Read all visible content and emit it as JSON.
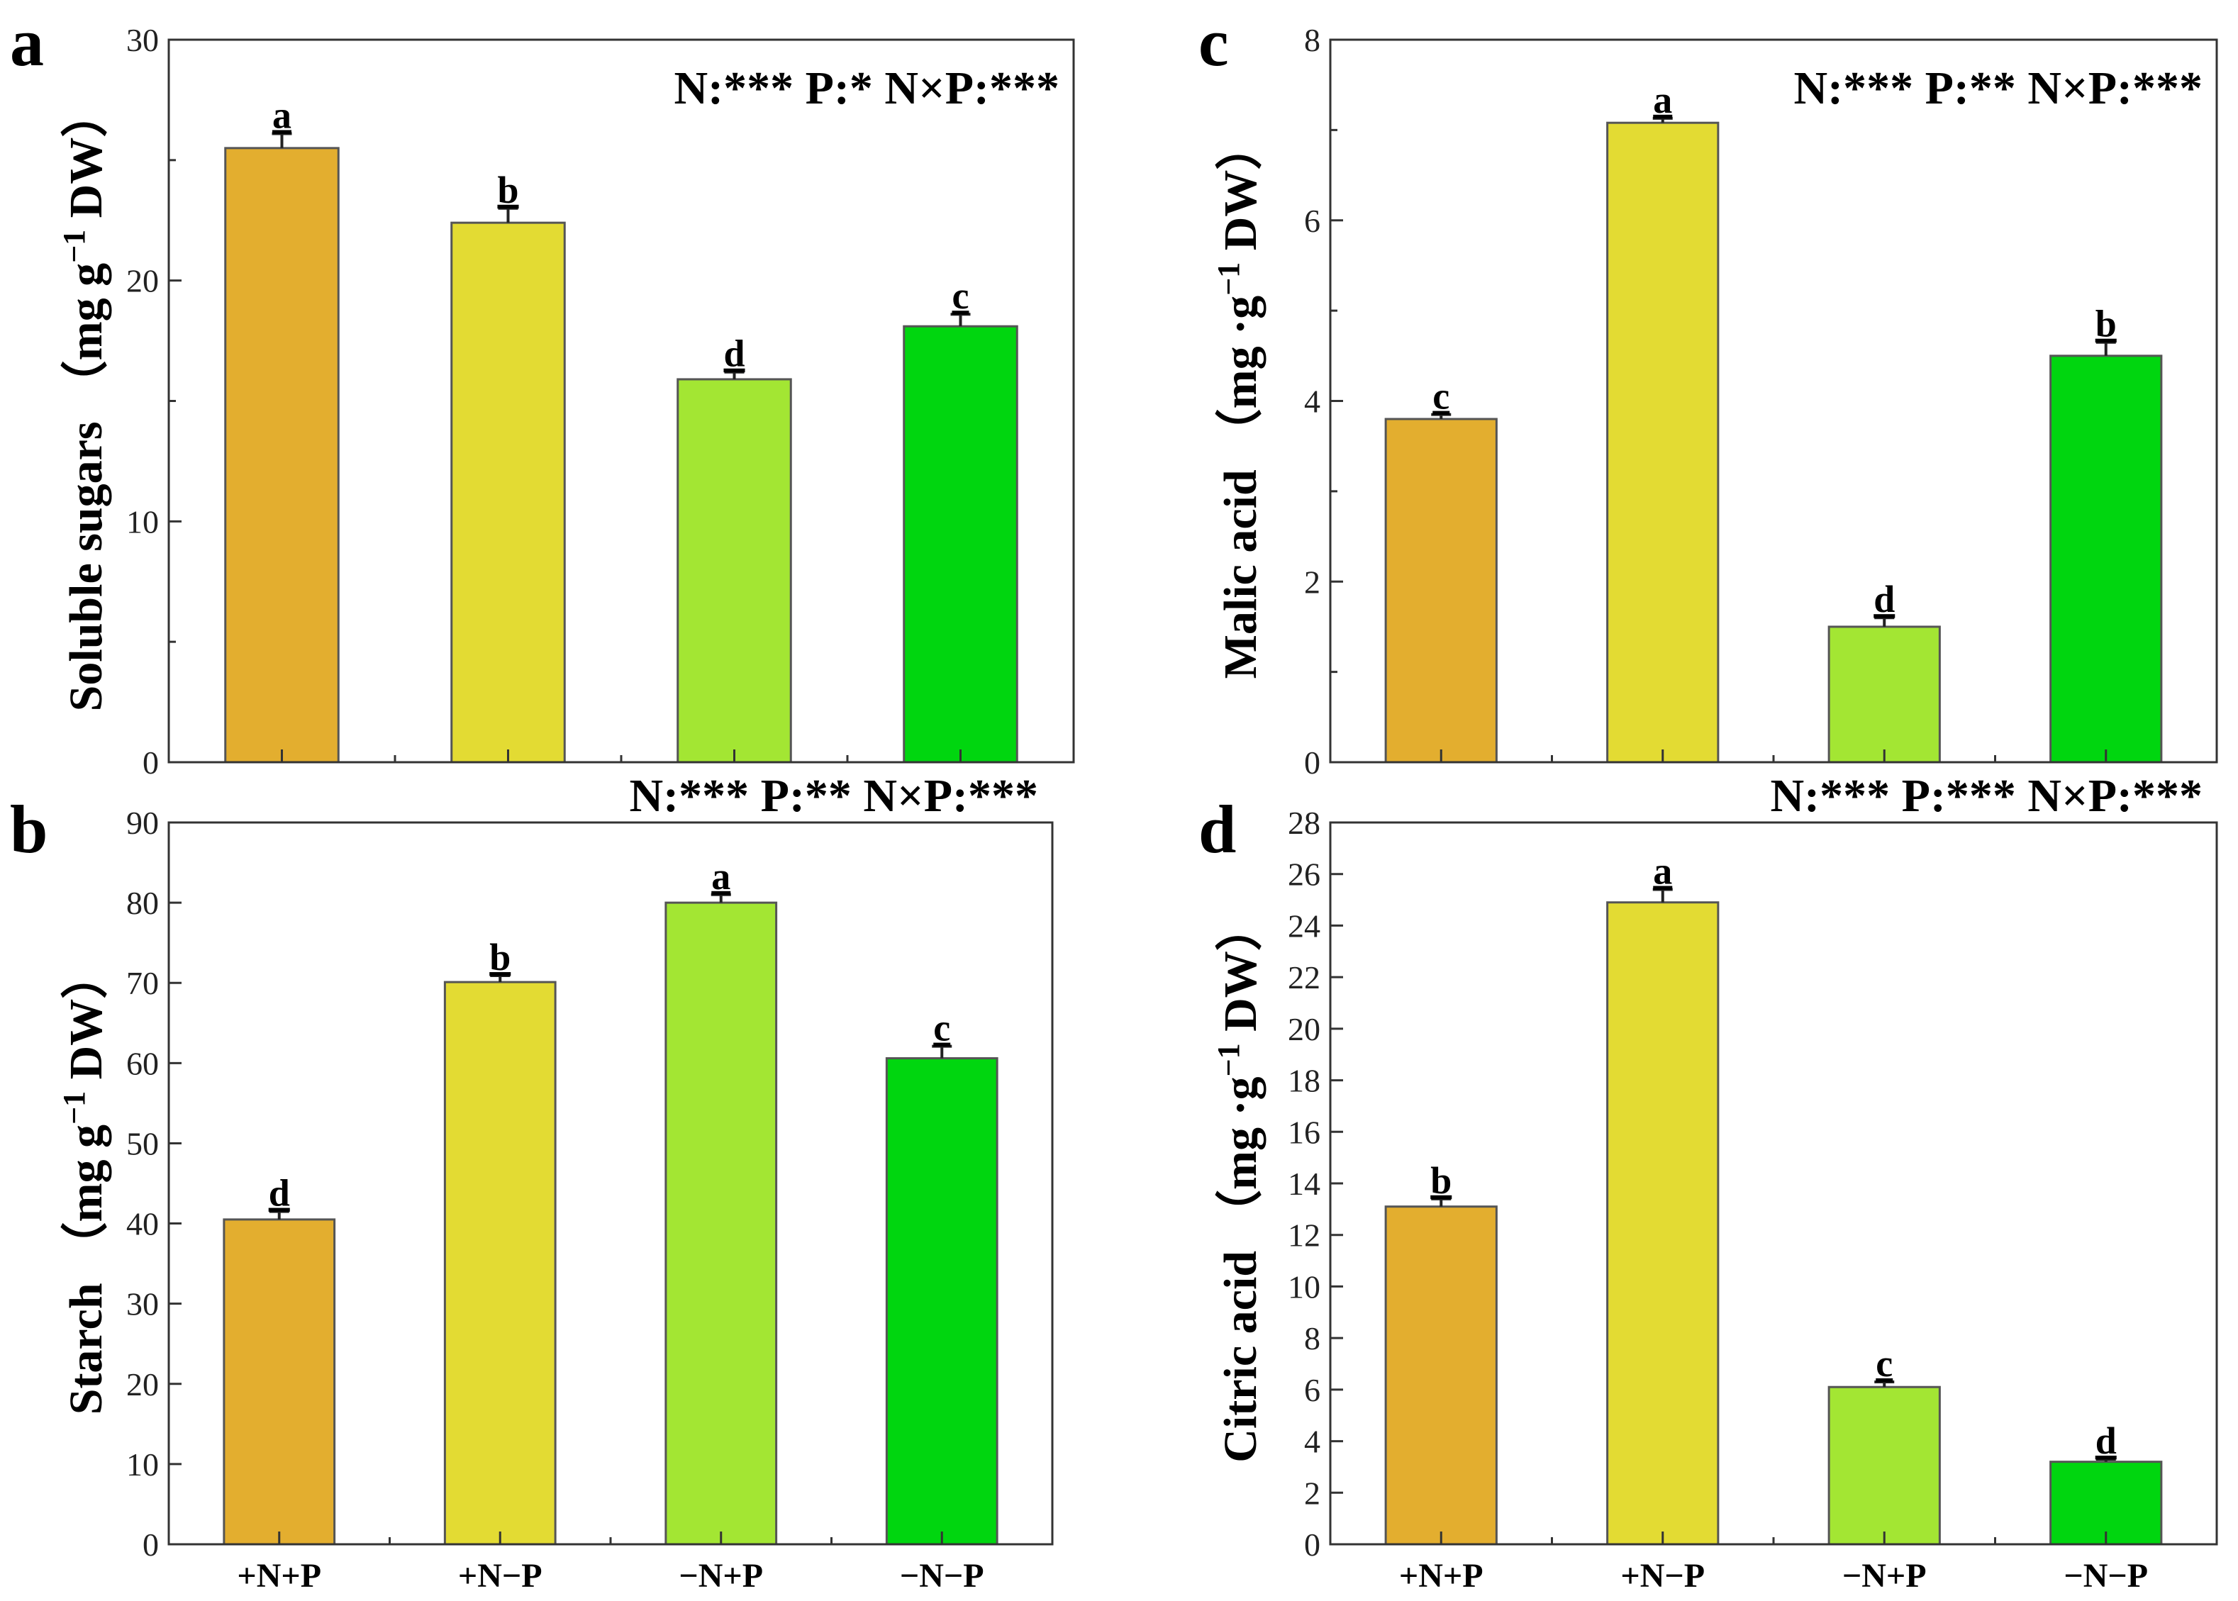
{
  "colors": [
    "#E3AE2F",
    "#E3DB33",
    "#A3E633",
    "#00D60F"
  ],
  "chart_data": [
    {
      "panel": "a",
      "type": "bar",
      "ylabel_main": "Soluble sugars",
      "ylabel_unit": "（mg g",
      "ylabel_sup": "−1",
      "ylabel_end": " DW）",
      "stats": "N:*** P:* N×P:***",
      "categories": [
        "+N+P",
        "+N−P",
        "−N+P",
        "−N−P"
      ],
      "values": [
        25.5,
        22.4,
        15.9,
        18.1
      ],
      "errors": [
        0.6,
        0.6,
        0.3,
        0.5
      ],
      "letters": [
        "a",
        "b",
        "d",
        "c"
      ],
      "ylim": [
        0,
        30
      ],
      "yticks": [
        "0",
        "10",
        "20",
        "30"
      ],
      "ytick_step": 10,
      "minor_step": 5,
      "show_xlabels": false
    },
    {
      "panel": "b",
      "type": "bar",
      "ylabel_main": "Starch",
      "ylabel_unit": "（mg g",
      "ylabel_sup": "−1",
      "ylabel_end": " DW）",
      "stats": "N:*** P:** N×P:***",
      "categories": [
        "+N+P",
        "+N−P",
        "−N+P",
        "−N−P"
      ],
      "values": [
        40.5,
        70.1,
        80.0,
        60.6
      ],
      "errors": [
        1.0,
        0.8,
        1.0,
        1.5
      ],
      "letters": [
        "d",
        "b",
        "a",
        "c"
      ],
      "ylim": [
        0,
        90
      ],
      "yticks": [
        "0",
        "10",
        "20",
        "30",
        "40",
        "50",
        "60",
        "70",
        "80",
        "90"
      ],
      "ytick_step": 10,
      "minor_step": 0,
      "show_xlabels": true
    },
    {
      "panel": "c",
      "type": "bar",
      "ylabel_main": "Malic acid",
      "ylabel_unit": "（mg ·g",
      "ylabel_sup": "−1",
      "ylabel_end": " DW）",
      "stats": "N:*** P:** N×P:***",
      "categories": [
        "+N+P",
        "+N−P",
        "−N+P",
        "−N−P"
      ],
      "values": [
        3.8,
        7.08,
        1.5,
        4.5
      ],
      "errors": [
        0.05,
        0.05,
        0.1,
        0.15
      ],
      "letters": [
        "c",
        "a",
        "d",
        "b"
      ],
      "ylim": [
        0,
        8
      ],
      "yticks": [
        "0",
        "2",
        "4",
        "6",
        "8"
      ],
      "ytick_step": 2,
      "minor_step": 1,
      "show_xlabels": false
    },
    {
      "panel": "d",
      "type": "bar",
      "ylabel_main": "Citric acid",
      "ylabel_unit": "（mg ·g",
      "ylabel_sup": "−1",
      "ylabel_end": " DW）",
      "stats": "N:*** P:*** N×P:***",
      "categories": [
        "+N+P",
        "+N−P",
        "−N+P",
        "−N−P"
      ],
      "values": [
        13.1,
        24.9,
        6.1,
        3.2
      ],
      "errors": [
        0.3,
        0.5,
        0.2,
        0.1
      ],
      "letters": [
        "b",
        "a",
        "c",
        "d"
      ],
      "ylim": [
        0,
        28
      ],
      "yticks": [
        "0",
        "2",
        "4",
        "6",
        "8",
        "10",
        "12",
        "14",
        "16",
        "18",
        "20",
        "22",
        "24",
        "26",
        "28"
      ],
      "ytick_step": 2,
      "minor_step": 0,
      "show_xlabels": true
    }
  ]
}
